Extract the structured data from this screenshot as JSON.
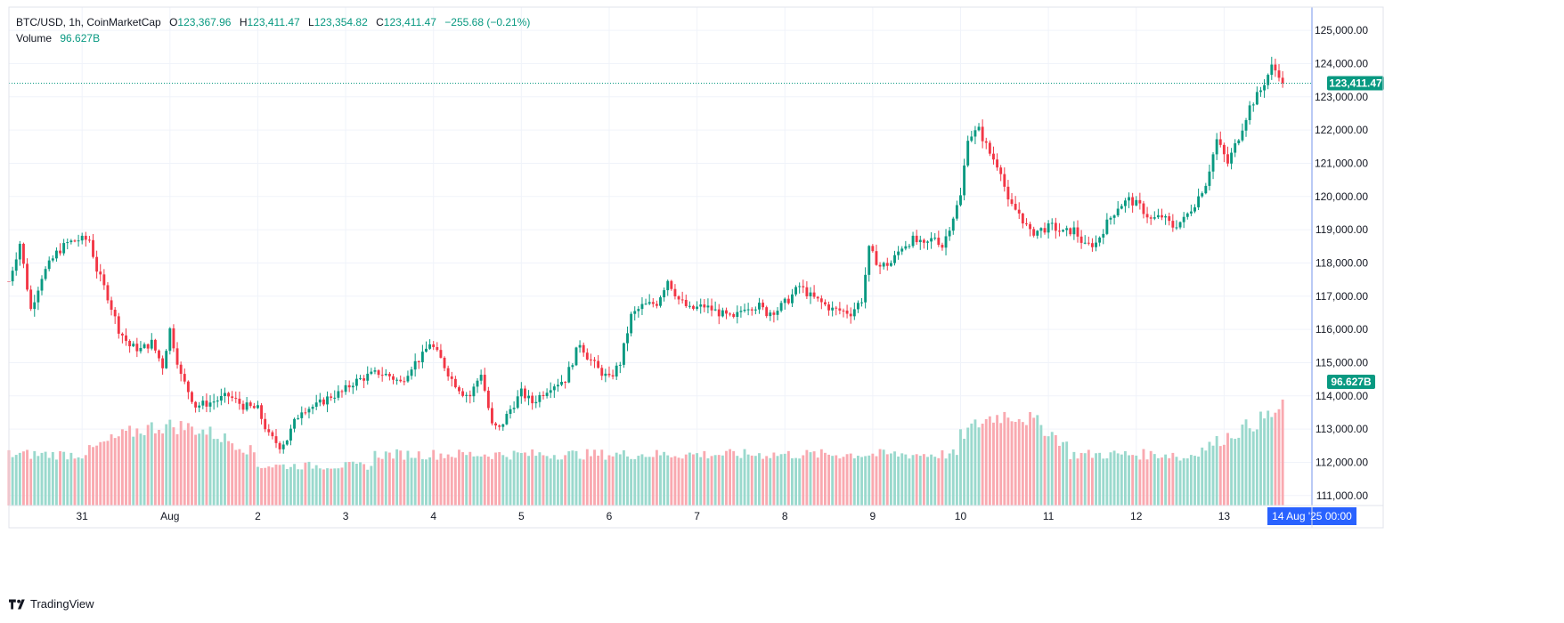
{
  "legend": {
    "symbol": "BTC/USD, 1h, CoinMarketCap",
    "open_label": "O",
    "open": "123,367.96",
    "high_label": "H",
    "high": "123,411.47",
    "low_label": "L",
    "low": "123,354.82",
    "close_label": "C",
    "close": "123,411.47",
    "change": "−255.68 (−0.21%)",
    "volume_label": "Volume",
    "volume": "96.627B"
  },
  "price_tag": "123,411.47",
  "volume_tag": "96.627B",
  "crosshair_label": "14 Aug '25   00:00",
  "brand": "TradingView",
  "colors": {
    "up": "#089981",
    "down": "#f23645",
    "up_volume": "#9ad9cd",
    "down_volume": "#f9a9b0",
    "crosshair": "#2962ff",
    "grid": "#f0f3fa",
    "axis_text": "#131722"
  },
  "chart_data": {
    "type": "candlestick",
    "title": "BTC/USD, 1h, CoinMarketCap",
    "y_axis": {
      "side": "right",
      "min": 110700,
      "max": 125700,
      "ticks": [
        111000,
        112000,
        113000,
        114000,
        115000,
        116000,
        117000,
        118000,
        119000,
        120000,
        121000,
        122000,
        123000,
        124000,
        125000
      ],
      "tick_labels": [
        "111,000.00",
        "112,000.00",
        "113,000.00",
        "114,000.00",
        "115,000.00",
        "116,000.00",
        "117,000.00",
        "118,000.00",
        "119,000.00",
        "120,000.00",
        "121,000.00",
        "122,000.00",
        "123,000.00",
        "124,000.00",
        "125,000.00"
      ]
    },
    "x_axis": {
      "range_hours": [
        -20,
        336
      ],
      "tick_hours": [
        0,
        24,
        48,
        72,
        96,
        120,
        144,
        168,
        192,
        216,
        240,
        264,
        288,
        312
      ],
      "tick_labels": [
        "31",
        "Aug",
        "2",
        "3",
        "4",
        "5",
        "6",
        "7",
        "8",
        "9",
        "10",
        "11",
        "12",
        "13"
      ],
      "crosshair_hour": 336
    },
    "last_price": 123411.47,
    "close_anchors": [
      [
        -20,
        117450
      ],
      [
        -17,
        118600
      ],
      [
        -14,
        116600
      ],
      [
        -11,
        117600
      ],
      [
        -7,
        118300
      ],
      [
        -4,
        118600
      ],
      [
        -1,
        118700
      ],
      [
        2,
        118700
      ],
      [
        4,
        117800
      ],
      [
        7,
        117000
      ],
      [
        10,
        116000
      ],
      [
        13,
        115500
      ],
      [
        16,
        115400
      ],
      [
        19,
        115600
      ],
      [
        22,
        114900
      ],
      [
        24,
        116000
      ],
      [
        27,
        114600
      ],
      [
        31,
        113700
      ],
      [
        35,
        113800
      ],
      [
        40,
        114000
      ],
      [
        44,
        113700
      ],
      [
        48,
        113600
      ],
      [
        51,
        112800
      ],
      [
        54,
        112500
      ],
      [
        56,
        112700
      ],
      [
        58,
        113200
      ],
      [
        60,
        113600
      ],
      [
        64,
        113700
      ],
      [
        68,
        114000
      ],
      [
        71,
        114100
      ],
      [
        74,
        114400
      ],
      [
        78,
        114600
      ],
      [
        81,
        114700
      ],
      [
        84,
        114600
      ],
      [
        87,
        114400
      ],
      [
        90,
        114900
      ],
      [
        93,
        115200
      ],
      [
        95,
        115600
      ],
      [
        98,
        115100
      ],
      [
        101,
        114500
      ],
      [
        104,
        114100
      ],
      [
        106,
        114000
      ],
      [
        109,
        114700
      ],
      [
        112,
        113100
      ],
      [
        114,
        113000
      ],
      [
        117,
        113600
      ],
      [
        120,
        114100
      ],
      [
        123,
        113800
      ],
      [
        126,
        114100
      ],
      [
        128,
        114300
      ],
      [
        132,
        114500
      ],
      [
        136,
        115600
      ],
      [
        138,
        115200
      ],
      [
        141,
        114800
      ],
      [
        144,
        114500
      ],
      [
        147,
        115000
      ],
      [
        150,
        116400
      ],
      [
        153,
        116700
      ],
      [
        157,
        116800
      ],
      [
        160,
        117500
      ],
      [
        163,
        116900
      ],
      [
        166,
        116600
      ],
      [
        170,
        116700
      ],
      [
        174,
        116500
      ],
      [
        178,
        116300
      ],
      [
        181,
        116700
      ],
      [
        185,
        116700
      ],
      [
        187,
        116500
      ],
      [
        190,
        116600
      ],
      [
        193,
        116900
      ],
      [
        196,
        117300
      ],
      [
        199,
        117000
      ],
      [
        202,
        116800
      ],
      [
        205,
        116600
      ],
      [
        208,
        116550
      ],
      [
        210,
        116500
      ],
      [
        213,
        116900
      ],
      [
        215,
        118400
      ],
      [
        218,
        117900
      ],
      [
        221,
        118000
      ],
      [
        224,
        118500
      ],
      [
        227,
        118700
      ],
      [
        230,
        118500
      ],
      [
        233,
        118800
      ],
      [
        235,
        118500
      ],
      [
        237,
        119100
      ],
      [
        240,
        120000
      ],
      [
        242,
        121800
      ],
      [
        245,
        122000
      ],
      [
        248,
        121300
      ],
      [
        251,
        120800
      ],
      [
        253,
        119800
      ],
      [
        256,
        119500
      ],
      [
        259,
        118900
      ],
      [
        262,
        119000
      ],
      [
        265,
        119100
      ],
      [
        268,
        118900
      ],
      [
        271,
        119000
      ],
      [
        274,
        118500
      ],
      [
        277,
        118600
      ],
      [
        280,
        119200
      ],
      [
        283,
        119700
      ],
      [
        286,
        119900
      ],
      [
        289,
        119700
      ],
      [
        292,
        119300
      ],
      [
        295,
        119400
      ],
      [
        298,
        119100
      ],
      [
        301,
        119300
      ],
      [
        304,
        119800
      ],
      [
        307,
        120400
      ],
      [
        310,
        121700
      ],
      [
        313,
        121000
      ],
      [
        316,
        121800
      ],
      [
        319,
        122700
      ],
      [
        322,
        123200
      ],
      [
        325,
        123900
      ],
      [
        327,
        123700
      ],
      [
        328,
        123411
      ]
    ],
    "volume_tag_value": "96.627B"
  }
}
